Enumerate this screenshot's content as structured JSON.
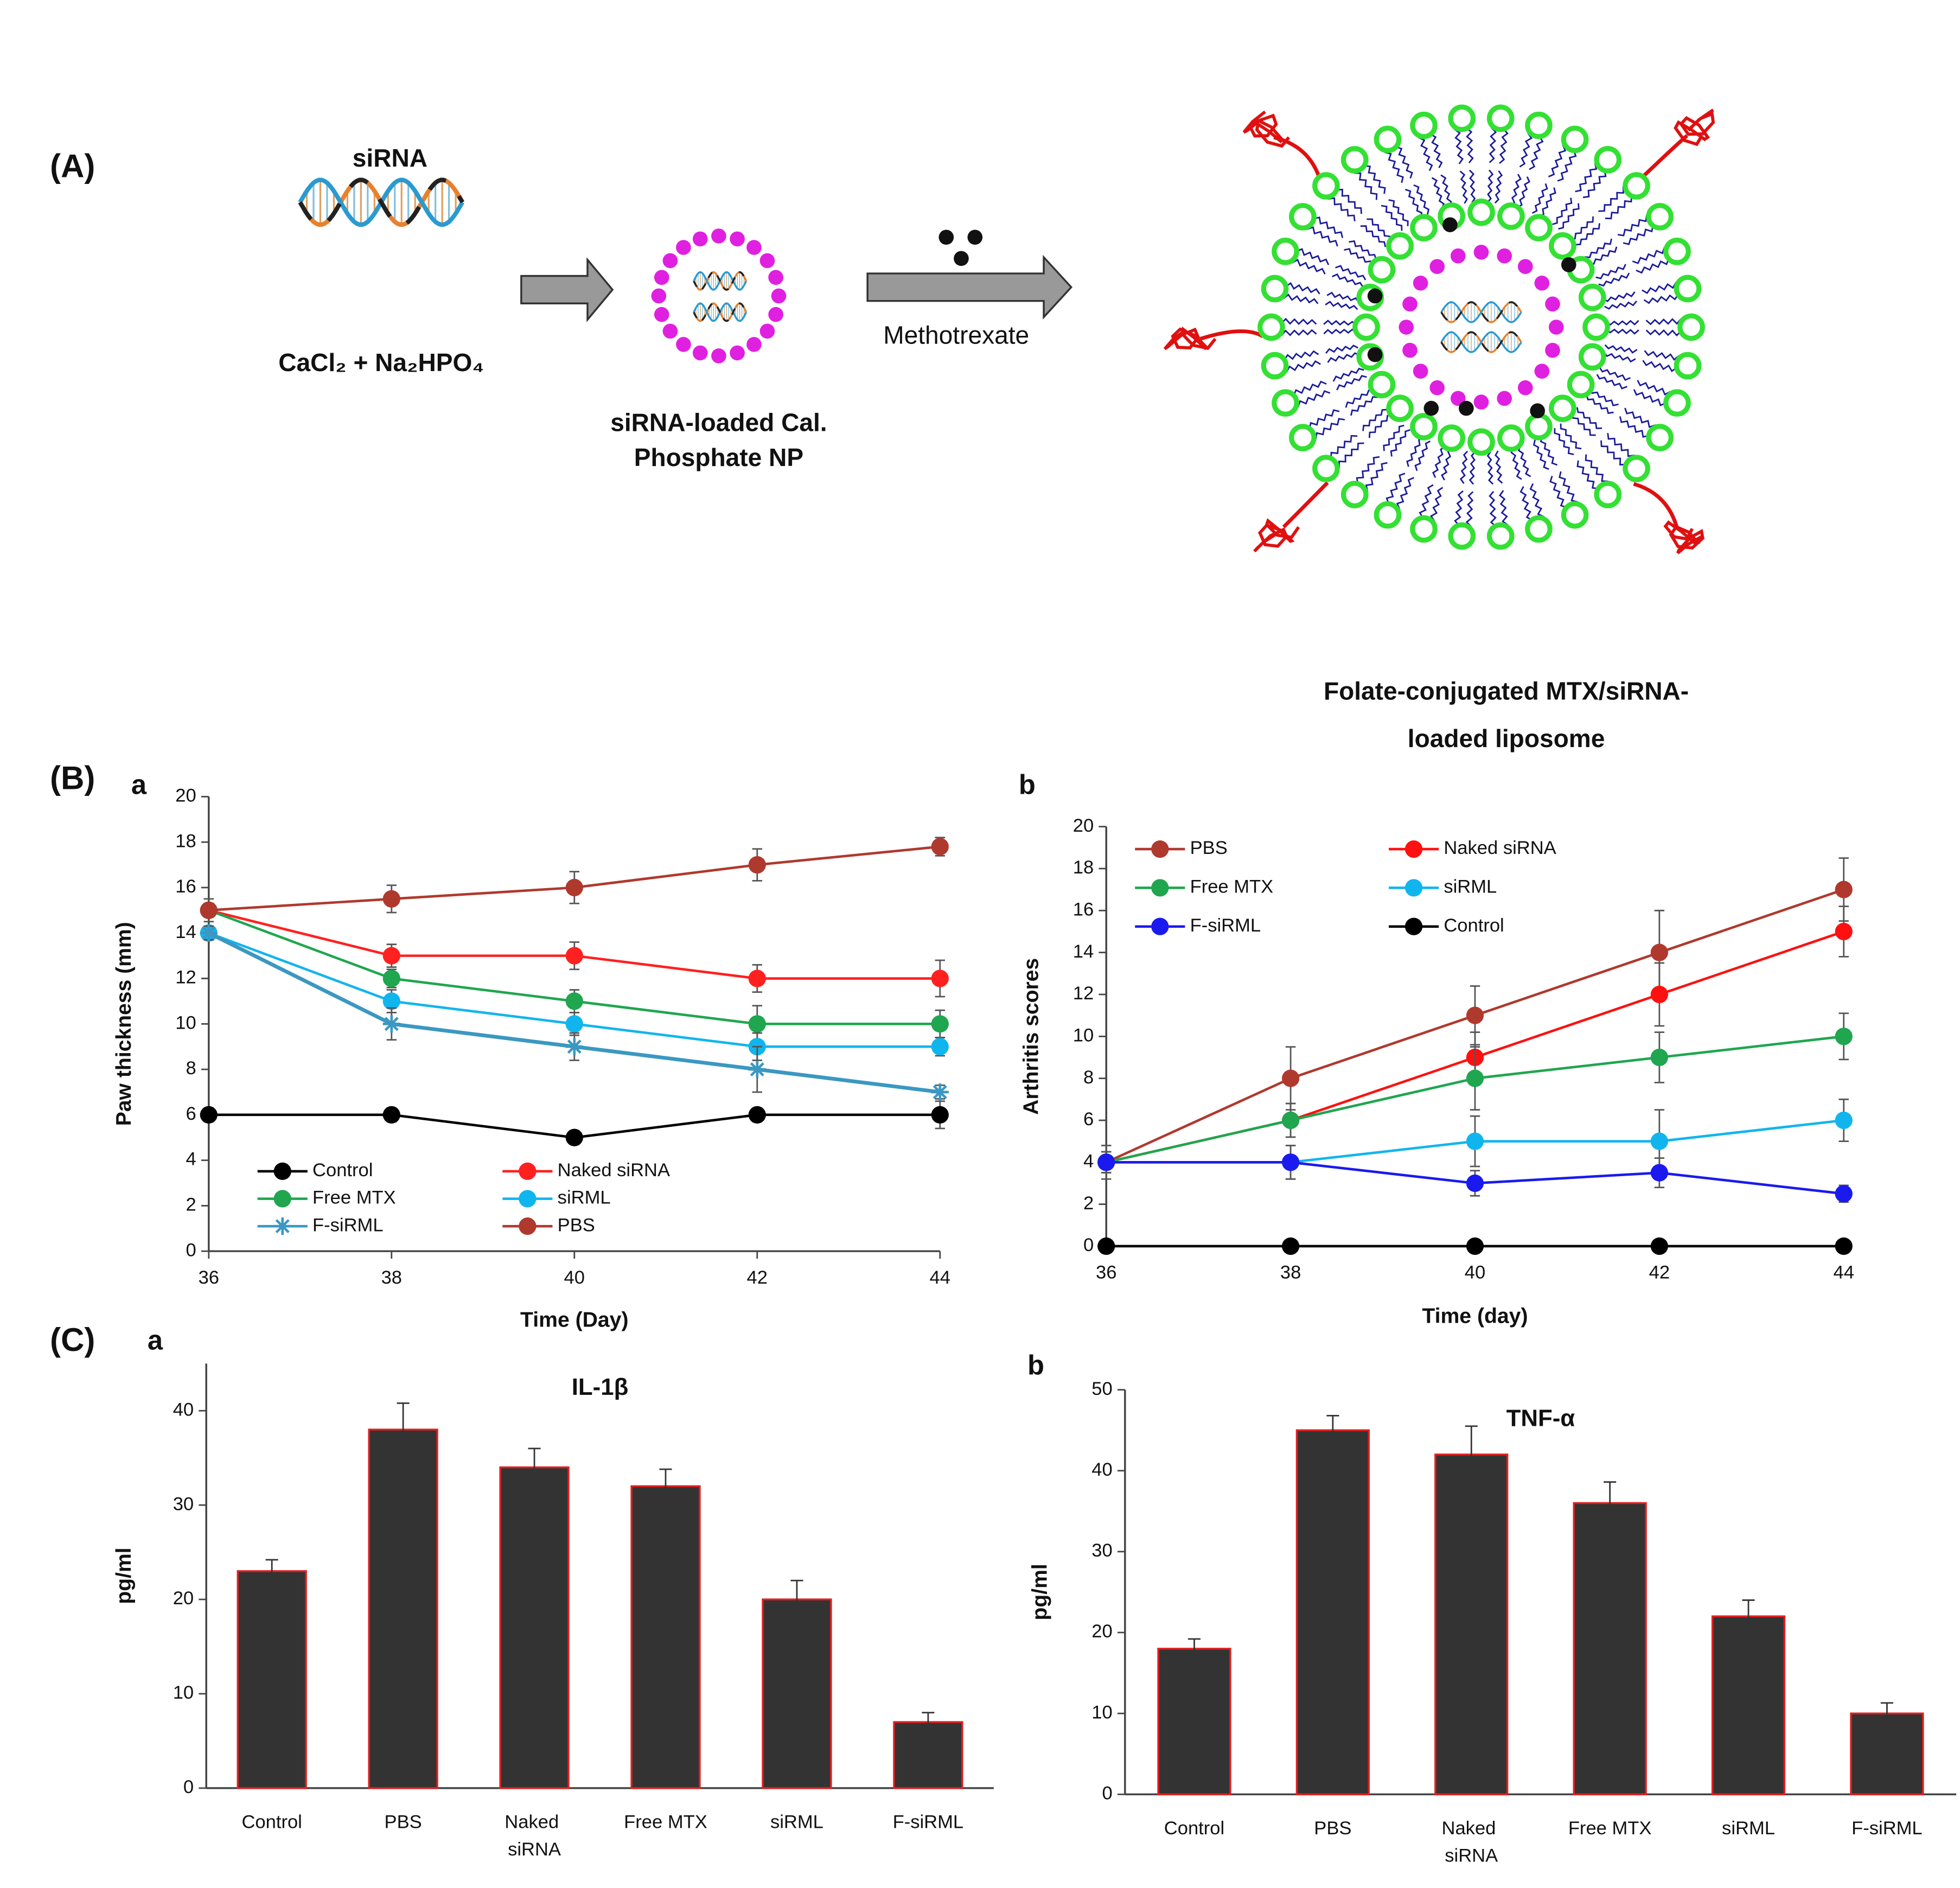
{
  "panel_labels": [
    "(A)",
    "(B)",
    "(C)"
  ],
  "diagram": {
    "sirna_label": "siRNA",
    "reagents": "CaCl₂ + Na₂HPO₄",
    "np_label": [
      "siRNA-loaded Cal.",
      "Phosphate NP"
    ],
    "drug_label": "Methotrexate",
    "liposome_label": [
      "Folate-conjugated MTX/siRNA-",
      "loaded liposome"
    ]
  },
  "chart_data": [
    {
      "type": "line",
      "panel": "a",
      "xlabel": "Time (Day)",
      "ylabel": "Paw thickness (mm)",
      "x": [
        36,
        38,
        40,
        42,
        44
      ],
      "xlim": [
        36,
        44
      ],
      "xticks": [
        36,
        38,
        40,
        42,
        44
      ],
      "ylim": [
        0,
        20
      ],
      "yticks": [
        0,
        2,
        4,
        6,
        8,
        10,
        12,
        14,
        16,
        18,
        20
      ],
      "grid": false,
      "series": [
        {
          "name": "Control",
          "color": "#000000",
          "values": [
            6,
            6,
            5,
            6,
            6
          ],
          "errors": [
            0.3,
            0.3,
            0.3,
            0.3,
            0.6
          ]
        },
        {
          "name": "Naked siRNA",
          "color": "#ff2020",
          "values": [
            15,
            13,
            13,
            12,
            12
          ],
          "errors": [
            0.5,
            0.5,
            0.6,
            0.6,
            0.8
          ]
        },
        {
          "name": "Free MTX",
          "color": "#1fa64f",
          "values": [
            15,
            12,
            11,
            10,
            10
          ],
          "errors": [
            0.3,
            0.4,
            0.5,
            0.8,
            0.6
          ]
        },
        {
          "name": "siRML",
          "color": "#11b5ee",
          "values": [
            14,
            11,
            10,
            9,
            9
          ],
          "errors": [
            0.3,
            0.5,
            0.5,
            0.6,
            0.4
          ]
        },
        {
          "name": "F-siRML",
          "color": "#3a98c2",
          "marker": "asterisk",
          "values": [
            14,
            10,
            9,
            8,
            7
          ],
          "errors": [
            0.3,
            0.7,
            0.6,
            1,
            0.3
          ]
        },
        {
          "name": "PBS",
          "color": "#b0392e",
          "values": [
            15,
            15.5,
            16,
            17,
            17.8
          ],
          "errors": [
            0.3,
            0.6,
            0.7,
            0.7,
            0.4
          ]
        }
      ]
    },
    {
      "type": "line",
      "panel": "b",
      "xlabel": "Time (day)",
      "ylabel": "Arthritis scores",
      "x": [
        36,
        38,
        40,
        42,
        44
      ],
      "xlim": [
        36,
        44
      ],
      "xticks": [
        36,
        38,
        40,
        42,
        44
      ],
      "ylim": [
        0,
        20
      ],
      "yticks": [
        0,
        2,
        4,
        6,
        8,
        10,
        12,
        14,
        16,
        18,
        20
      ],
      "grid": false,
      "series": [
        {
          "name": "PBS",
          "color": "#b0392e",
          "values": [
            4,
            8,
            11,
            14,
            17
          ],
          "errors": [
            0.8,
            1.5,
            1.4,
            2,
            1.5
          ]
        },
        {
          "name": "Naked siRNA",
          "color": "#ff1010",
          "values": [
            4,
            6,
            9,
            12,
            15
          ],
          "errors": [
            0.5,
            0.8,
            1.2,
            1.5,
            1.2
          ]
        },
        {
          "name": "Free MTX",
          "color": "#1fa64f",
          "values": [
            4,
            6,
            8,
            9,
            10
          ],
          "errors": [
            0.5,
            0.8,
            1.5,
            1.2,
            1.1
          ]
        },
        {
          "name": "siRML",
          "color": "#11b5ee",
          "values": [
            4,
            4,
            5,
            5,
            6
          ],
          "errors": [
            0.5,
            0.8,
            1.2,
            1.5,
            1
          ]
        },
        {
          "name": "F-siRML",
          "color": "#1a1aee",
          "values": [
            4,
            4,
            3,
            3.5,
            2.5
          ],
          "errors": [
            0.3,
            0.8,
            0.6,
            0.7,
            0.4
          ]
        },
        {
          "name": "Control",
          "color": "#000000",
          "values": [
            0,
            0,
            0,
            0,
            0
          ],
          "errors": [
            0,
            0,
            0,
            0,
            0
          ]
        }
      ]
    },
    {
      "type": "bar",
      "panel": "a",
      "title": "IL-1β",
      "ylabel": "pg/ml",
      "categories": [
        "Control",
        "PBS",
        "Naked siRNA",
        "Free MTX",
        "siRML",
        "F-siRML"
      ],
      "values": [
        23,
        38,
        34,
        32,
        20,
        7
      ],
      "errors": [
        1.2,
        2.8,
        2,
        1.8,
        2,
        1
      ],
      "color": "#333333",
      "edge_color": "#e02020",
      "ylim": [
        0,
        45
      ],
      "yticks": [
        0,
        10,
        20,
        30,
        40
      ],
      "grid": false
    },
    {
      "type": "bar",
      "panel": "b",
      "title": "TNF-α",
      "ylabel": "pg/ml",
      "categories": [
        "Control",
        "PBS",
        "Naked siRNA",
        "Free MTX",
        "siRML",
        "F-siRML"
      ],
      "values": [
        18,
        45,
        42,
        36,
        22,
        10
      ],
      "errors": [
        1.2,
        1.8,
        3.5,
        2.6,
        2,
        1.3
      ],
      "color": "#333333",
      "edge_color": "#e02020",
      "ylim": [
        0,
        50
      ],
      "yticks": [
        0,
        10,
        20,
        30,
        40,
        50
      ],
      "grid": false
    }
  ]
}
